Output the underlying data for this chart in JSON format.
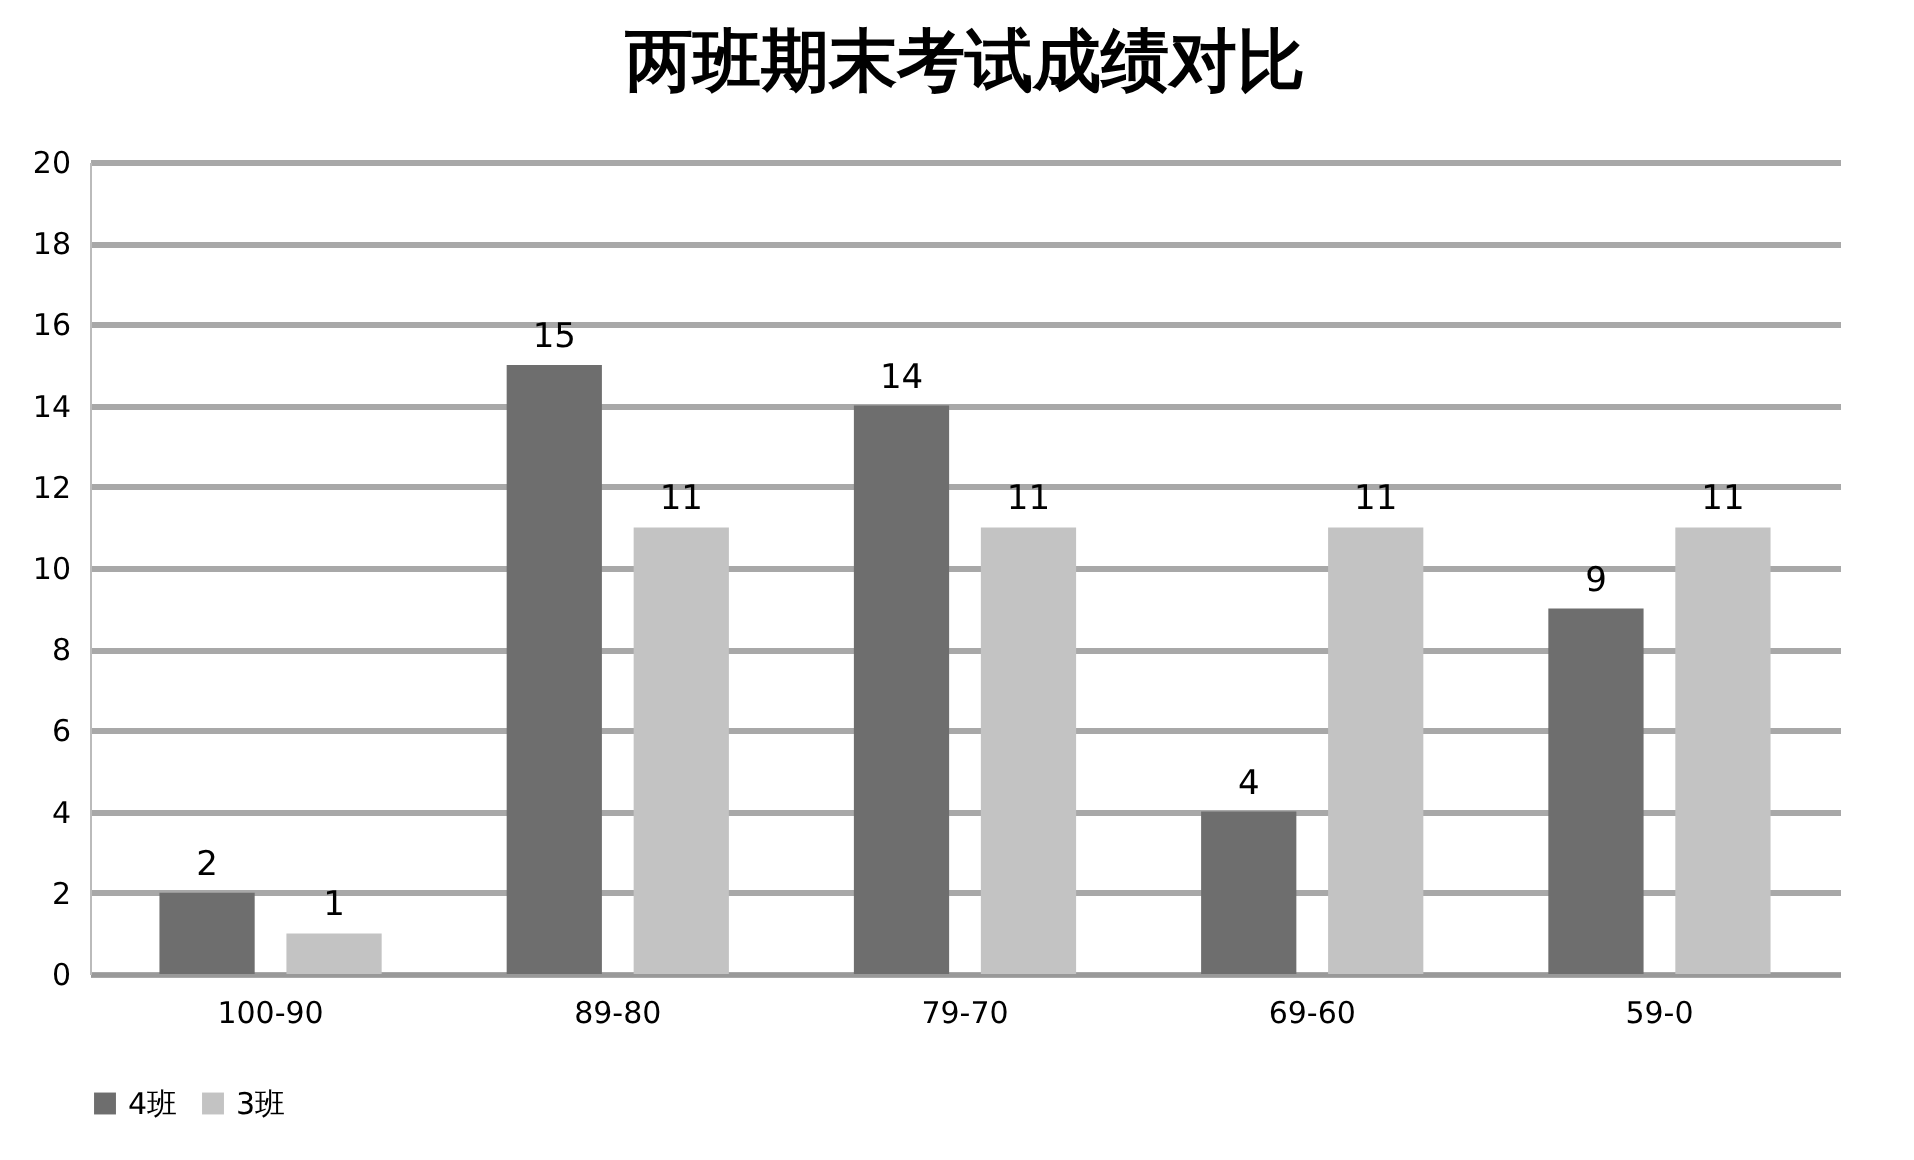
{
  "chart_data": {
    "type": "bar",
    "title": "两班期末考试成绩对比",
    "categories": [
      "100-90",
      "89-80",
      "79-70",
      "69-60",
      "59-0"
    ],
    "series": [
      {
        "name": "4班",
        "color": "#6e6e6e",
        "values": [
          2,
          15,
          14,
          4,
          9
        ]
      },
      {
        "name": "3班",
        "color": "#c3c3c3",
        "values": [
          1,
          11,
          11,
          11,
          11
        ]
      }
    ],
    "ylim": [
      0,
      20
    ],
    "yticks": [
      0,
      2,
      4,
      6,
      8,
      10,
      12,
      14,
      16,
      18,
      20
    ],
    "grid": "y",
    "legend": "bottom",
    "data_labels": true
  }
}
